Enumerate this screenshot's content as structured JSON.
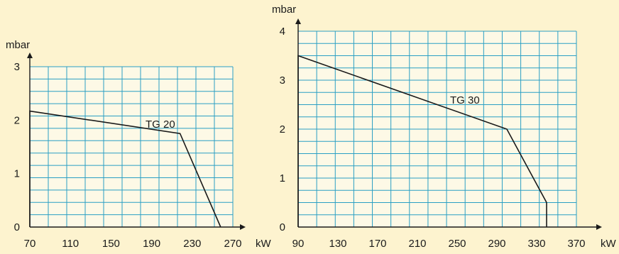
{
  "chart_data": [
    {
      "type": "line",
      "title": "",
      "ylabel": "mbar",
      "xlabel": "kW",
      "xlim": [
        70,
        270
      ],
      "ylim": [
        0,
        3
      ],
      "xticks": [
        "70",
        "110",
        "150",
        "190",
        "230",
        "270"
      ],
      "yticks": [
        "0",
        "1",
        "2",
        "3"
      ],
      "grid": true,
      "series": [
        {
          "name": "TG 20",
          "points": [
            [
              70,
              0
            ],
            [
              70,
              2.17
            ],
            [
              218,
              1.75
            ],
            [
              258,
              0
            ]
          ]
        }
      ]
    },
    {
      "type": "line",
      "title": "",
      "ylabel": "mbar",
      "xlabel": "kW",
      "xlim": [
        90,
        370
      ],
      "ylim": [
        0,
        4
      ],
      "xticks": [
        "90",
        "130",
        "170",
        "210",
        "250",
        "290",
        "330",
        "370"
      ],
      "yticks": [
        "0",
        "1",
        "2",
        "3",
        "4"
      ],
      "grid": true,
      "series": [
        {
          "name": "TG 30",
          "points": [
            [
              90,
              0
            ],
            [
              90,
              3.5
            ],
            [
              300,
              2.0
            ],
            [
              340,
              0.5
            ],
            [
              340,
              0
            ]
          ]
        }
      ]
    }
  ],
  "colors": {
    "background": "#fdf3cf",
    "plot_area": "#fdf9e6",
    "grid": "#2a9fc4",
    "line": "#1a1a1a"
  }
}
